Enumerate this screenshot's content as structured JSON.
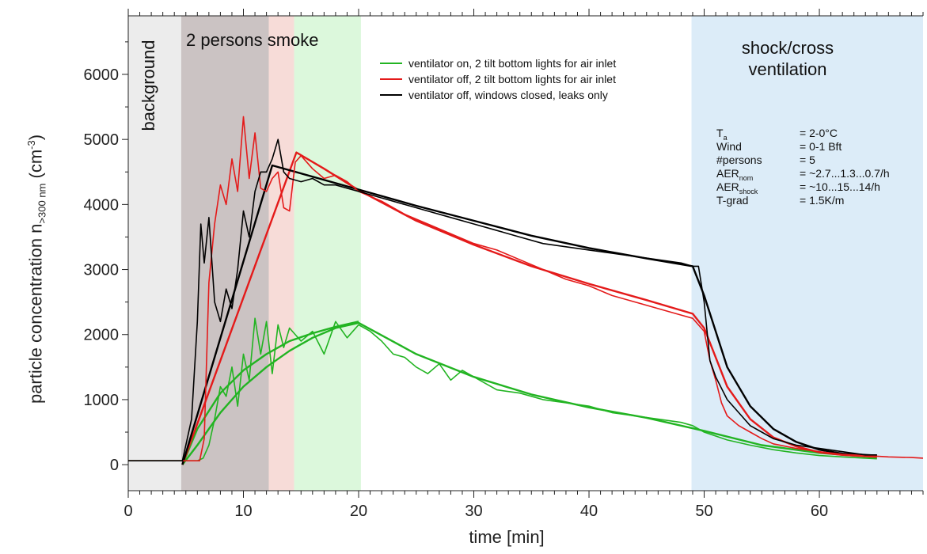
{
  "chart_data": {
    "type": "line",
    "xlabel": "time [min]",
    "ylabel": "particle concentration n",
    "ylabel_sub": ">300 nm",
    "ylabel_unit": "(cm",
    "ylabel_unit_sup": "-3",
    "ylabel_unit_close": ")",
    "xlim": [
      0,
      69
    ],
    "ylim": [
      -400,
      6900
    ],
    "xticks": [
      0,
      10,
      20,
      30,
      40,
      50,
      60
    ],
    "yticks": [
      0,
      1000,
      2000,
      3000,
      4000,
      5000,
      6000
    ],
    "regions": [
      {
        "label": "background",
        "x0": 0,
        "x1": 4.6,
        "color": "#ececec"
      },
      {
        "label": "2 persons smoke",
        "x0": 4.6,
        "x1": 12.2,
        "color": "#cbc3c3"
      },
      {
        "label": "",
        "x0": 12.2,
        "x1": 14.4,
        "color": "#f7dcd8"
      },
      {
        "label": "",
        "x0": 14.4,
        "x1": 20.2,
        "color": "#dcf8dc"
      },
      {
        "label": "shock/cross ventilation",
        "x0": 48.9,
        "x1": 69,
        "color": "#dcecf8"
      }
    ],
    "series": [
      {
        "name": "ventilator on, 2 tilt bottom lights for air inlet",
        "color": "#22b422",
        "x": [
          0,
          4.7,
          6,
          6.5,
          7,
          7.5,
          8,
          8.5,
          9,
          9.5,
          10,
          10.5,
          11,
          11.5,
          12,
          12.5,
          13,
          13.5,
          14,
          15,
          16,
          17,
          18,
          19,
          20,
          21,
          22,
          23,
          24,
          25,
          26,
          27,
          28,
          29,
          30,
          32,
          34,
          36,
          38,
          40,
          42,
          44,
          46,
          48,
          49,
          50,
          52,
          54,
          56,
          58,
          60,
          62,
          64,
          65
        ],
        "y": [
          60,
          60,
          60,
          100,
          300,
          700,
          1200,
          1050,
          1500,
          900,
          1700,
          1300,
          2250,
          1700,
          2200,
          1400,
          2150,
          1800,
          2100,
          1900,
          2050,
          1700,
          2200,
          1950,
          2150,
          2050,
          1900,
          1700,
          1650,
          1500,
          1400,
          1550,
          1300,
          1450,
          1350,
          1150,
          1100,
          1000,
          950,
          900,
          800,
          750,
          700,
          650,
          600,
          500,
          380,
          300,
          230,
          180,
          140,
          120,
          100,
          90
        ]
      },
      {
        "name": "ventilator off, 2 tilt bottom lights for air inlet",
        "color": "#e41a1a",
        "x": [
          0,
          4.7,
          6.2,
          6.6,
          7,
          7.5,
          8,
          8.5,
          9,
          9.5,
          10,
          10.5,
          11,
          11.5,
          12,
          12.5,
          13,
          13.5,
          14,
          14.5,
          15,
          16,
          17,
          18,
          19,
          20,
          22,
          24,
          26,
          28,
          30,
          32,
          34,
          36,
          38,
          40,
          42,
          44,
          46,
          48,
          49,
          50,
          50.5,
          51,
          51.5,
          52,
          53,
          54,
          55,
          56,
          58,
          60,
          62,
          64,
          66,
          68,
          69
        ],
        "y": [
          60,
          60,
          60,
          400,
          2800,
          3700,
          4300,
          4000,
          4700,
          4200,
          5350,
          4400,
          5100,
          4250,
          4200,
          4400,
          4500,
          3950,
          3900,
          4650,
          4750,
          4550,
          4400,
          4450,
          4350,
          4200,
          4050,
          3850,
          3700,
          3550,
          3400,
          3300,
          3150,
          3000,
          2850,
          2750,
          2600,
          2500,
          2400,
          2300,
          2250,
          2050,
          1600,
          1300,
          950,
          750,
          600,
          500,
          400,
          320,
          250,
          200,
          160,
          140,
          120,
          110,
          100
        ]
      },
      {
        "name": "ventilator off, windows closed, leaks only",
        "color": "#000000",
        "x": [
          0,
          4.7,
          5.5,
          6,
          6.3,
          6.6,
          7,
          7.5,
          8,
          8.5,
          9,
          9.5,
          10,
          10.5,
          11,
          11.5,
          12,
          12.5,
          13,
          13.5,
          14,
          15,
          16,
          17,
          18,
          19,
          20,
          22,
          24,
          26,
          28,
          30,
          32,
          34,
          36,
          38,
          40,
          42,
          44,
          46,
          48,
          49,
          49.5,
          50,
          50.5,
          51,
          52,
          53,
          54,
          55,
          56,
          58,
          60,
          62,
          64,
          65
        ],
        "y": [
          60,
          60,
          700,
          2200,
          3700,
          3100,
          3800,
          2500,
          2200,
          2700,
          2400,
          3000,
          3900,
          3500,
          4200,
          4500,
          4500,
          4700,
          5000,
          4500,
          4400,
          4350,
          4400,
          4300,
          4300,
          4250,
          4200,
          4100,
          4000,
          3900,
          3800,
          3700,
          3600,
          3500,
          3400,
          3350,
          3300,
          3250,
          3200,
          3150,
          3100,
          3050,
          3050,
          2500,
          1600,
          1350,
          1000,
          800,
          600,
          500,
          400,
          300,
          250,
          200,
          150,
          150
        ]
      }
    ],
    "fits": [
      {
        "color": "#22b422",
        "x": [
          4.7,
          6,
          8,
          10,
          12,
          14,
          16,
          18,
          20,
          25,
          30,
          35,
          40,
          45,
          50,
          55,
          60,
          65
        ],
        "y": [
          0,
          300,
          800,
          1200,
          1500,
          1750,
          1950,
          2100,
          2180,
          1700,
          1350,
          1080,
          880,
          720,
          520,
          300,
          180,
          110
        ]
      },
      {
        "color": "#22b422",
        "x": [
          4.7,
          6,
          8,
          10,
          12,
          14,
          16,
          18,
          20
        ],
        "y": [
          0,
          550,
          1100,
          1450,
          1700,
          1900,
          2020,
          2120,
          2200
        ]
      },
      {
        "color": "#e41a1a",
        "x": [
          4.7,
          14.6,
          17,
          20,
          25,
          30,
          35,
          40,
          45,
          49,
          50,
          52,
          54,
          56,
          58,
          60,
          62,
          65
        ],
        "y": [
          0,
          4800,
          4550,
          4220,
          3750,
          3380,
          3050,
          2780,
          2530,
          2320,
          2100,
          1200,
          700,
          420,
          280,
          190,
          150,
          120
        ]
      },
      {
        "color": "#000000",
        "x": [
          4.7,
          12.5,
          20,
          25,
          30,
          35,
          40,
          45,
          49,
          50,
          52,
          54,
          56,
          58,
          60,
          62,
          65
        ],
        "y": [
          0,
          4600,
          4230,
          3980,
          3750,
          3520,
          3330,
          3170,
          3050,
          2600,
          1500,
          900,
          550,
          350,
          230,
          170,
          140
        ]
      }
    ]
  },
  "labels": {
    "background": "background",
    "smoke": "2 persons smoke",
    "shock_line1": "shock/cross",
    "shock_line2": "ventilation"
  },
  "params": [
    {
      "key": "T",
      "sub": "a",
      "value": "= 2-0°C"
    },
    {
      "key": "Wind",
      "sub": "",
      "value": "= 0-1 Bft"
    },
    {
      "key": "#persons",
      "sub": "",
      "value": "= 5"
    },
    {
      "key": "AER",
      "sub": "nom",
      "value": "= ~2.7...1.3...0.7/h"
    },
    {
      "key": "AER",
      "sub": "shock",
      "value": "= ~10...15...14/h"
    },
    {
      "key": "T-grad",
      "sub": "",
      "value": "= 1.5K/m"
    }
  ]
}
